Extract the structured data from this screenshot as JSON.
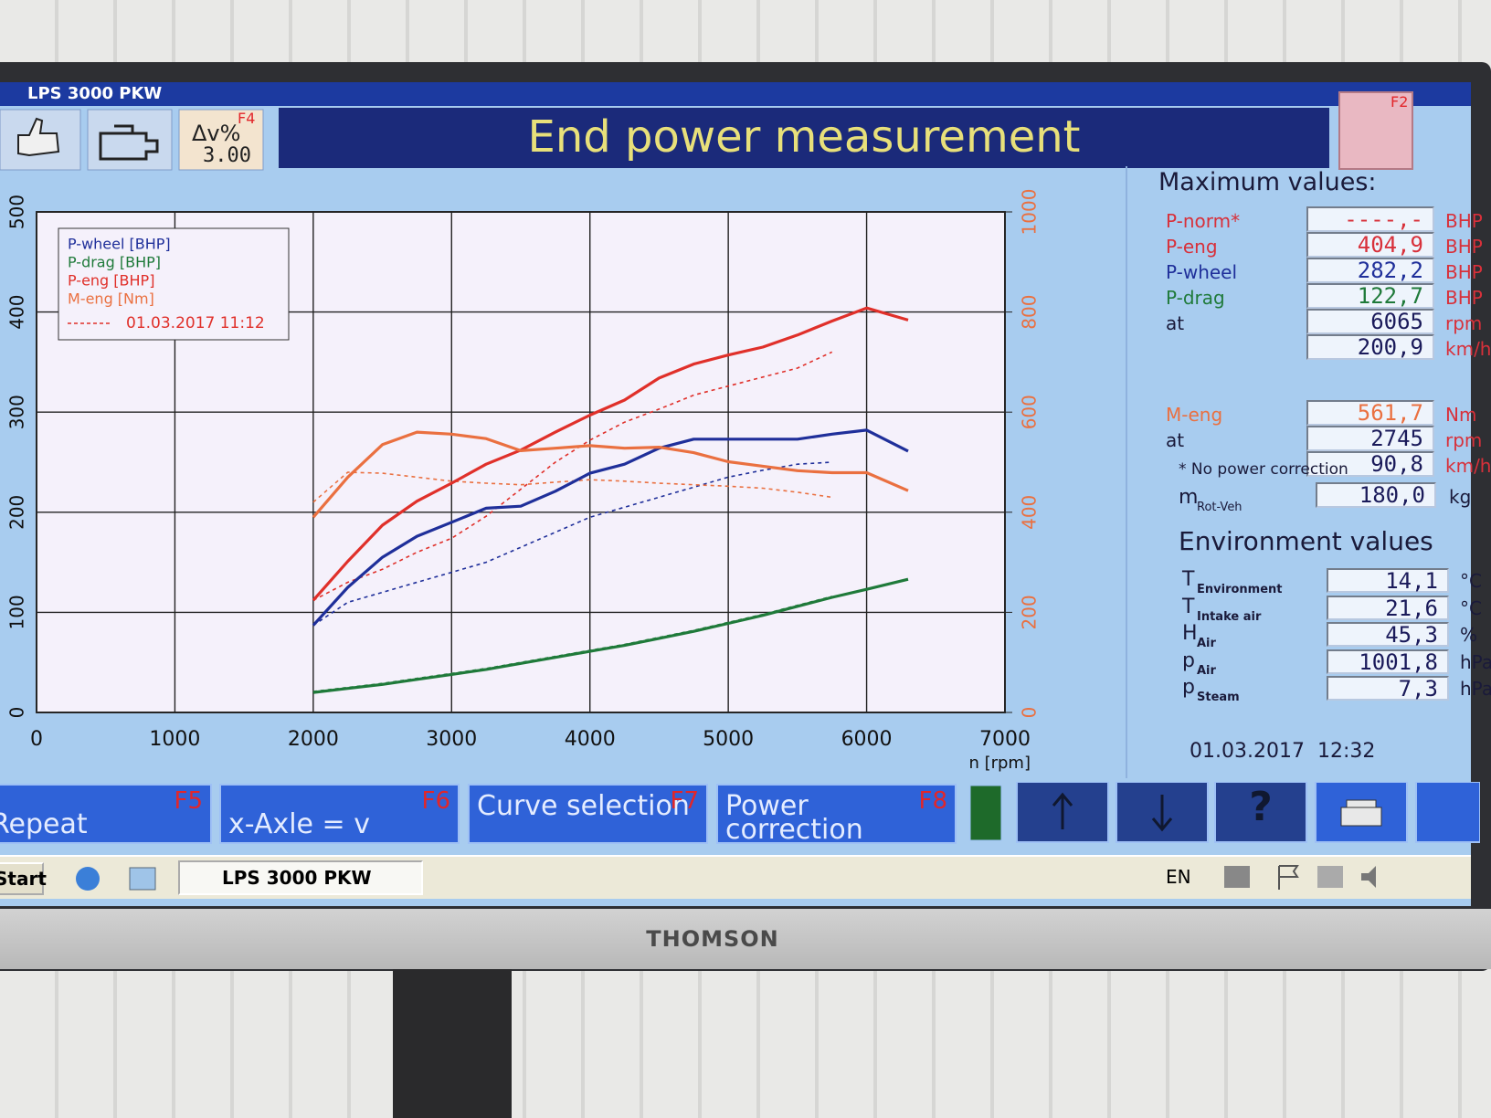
{
  "window": {
    "title": "LPS 3000 PKW"
  },
  "toolbar": {
    "delta_label": "Δv%",
    "delta_value": "3.00",
    "delta_key": "F4",
    "title": "End power measurement",
    "right_key": "F2"
  },
  "chart_data": {
    "type": "line",
    "xlabel": "n [rpm]",
    "x": [
      2000,
      2250,
      2500,
      2750,
      3000,
      3250,
      3500,
      3750,
      4000,
      4250,
      4500,
      4750,
      5000,
      5250,
      5500,
      5750,
      6000,
      6300
    ],
    "series": [
      {
        "name": "P-wheel [BHP]",
        "color": "#1f2f9a",
        "values": [
          87,
          125,
          155,
          176,
          190,
          204,
          206,
          221,
          239,
          248,
          264,
          273,
          273,
          273,
          273,
          278,
          282,
          261
        ]
      },
      {
        "name": "P-drag [BHP]",
        "color": "#1f7a3a",
        "values": [
          20,
          24,
          28,
          33,
          38,
          43,
          49,
          55,
          61,
          67,
          74,
          81,
          89,
          97,
          106,
          115,
          123,
          133
        ]
      },
      {
        "name": "P-eng [BHP]",
        "color": "#e0302a",
        "values": [
          112,
          151,
          187,
          211,
          229,
          248,
          262,
          280,
          297,
          312,
          334,
          348,
          357,
          365,
          377,
          391,
          404,
          392
        ]
      },
      {
        "name": "M-eng [Nm]",
        "color": "#ea7040",
        "axis": "y2",
        "values": [
          390,
          470,
          535,
          560,
          556,
          547,
          523,
          528,
          533,
          528,
          530,
          519,
          501,
          492,
          483,
          479,
          479,
          443
        ]
      }
    ],
    "comparison": {
      "label": "01.03.2017 11:12",
      "series": [
        {
          "color": "#1f2f9a",
          "values": [
            87,
            110,
            120,
            130,
            140,
            150,
            165,
            180,
            195,
            205,
            215,
            225,
            235,
            242,
            248,
            250,
            null,
            null
          ]
        },
        {
          "color": "#1f7a3a",
          "values": [
            21,
            25,
            29,
            34,
            39,
            44,
            50,
            56,
            62,
            68,
            75,
            82,
            90,
            98,
            107,
            116,
            null,
            null
          ]
        },
        {
          "color": "#e0302a",
          "values": [
            112,
            130,
            143,
            160,
            174,
            196,
            223,
            250,
            272,
            290,
            303,
            317,
            326,
            335,
            344,
            360,
            null,
            null
          ]
        },
        {
          "color": "#ea7040",
          "axis": "y2",
          "values": [
            420,
            480,
            478,
            470,
            462,
            458,
            455,
            460,
            465,
            462,
            458,
            455,
            452,
            448,
            440,
            430,
            null,
            null
          ]
        }
      ]
    },
    "xlim": [
      0,
      7000
    ],
    "xticks": [
      0,
      1000,
      2000,
      3000,
      4000,
      5000,
      6000,
      7000
    ],
    "ylim": [
      0,
      500
    ],
    "yticks": [
      0,
      100,
      200,
      300,
      400,
      500
    ],
    "y2lim": [
      0,
      1000
    ],
    "y2ticks": [
      0,
      200,
      400,
      600,
      800,
      1000
    ],
    "y2color": "#ea7040",
    "grid": true,
    "legend": "upper left"
  },
  "max_values": {
    "title": "Maximum values:",
    "rows": [
      {
        "label": "P-norm*",
        "value": "----,-",
        "unit": "BHP",
        "color": "#d8303a"
      },
      {
        "label": "P-eng",
        "value": "404,9",
        "unit": "BHP",
        "color": "#d8303a"
      },
      {
        "label": "P-wheel",
        "value": "282,2",
        "unit": "BHP",
        "color": "#1f2f9a"
      },
      {
        "label": "P-drag",
        "value": "122,7",
        "unit": "BHP",
        "color": "#1f7a3a"
      },
      {
        "label": "at",
        "value": "6065",
        "unit": "rpm",
        "color": "#1a1a3a"
      },
      {
        "label": null,
        "value": "200,9",
        "unit": "km/h",
        "color": "#1a1a3a"
      },
      {
        "label": "M-eng",
        "value": "561,7",
        "unit": "Nm",
        "color": "#ea7040"
      },
      {
        "label": "at",
        "value": "2745",
        "unit": "rpm",
        "color": "#1a1a3a"
      },
      {
        "label": null,
        "value": "90,8",
        "unit": "km/h",
        "color": "#1a1a3a"
      }
    ],
    "note": "* No power correction",
    "mass": {
      "label": "m",
      "sub": "Rot-Veh",
      "value": "180,0",
      "unit": "kg"
    }
  },
  "environment": {
    "title": "Environment values",
    "rows": [
      {
        "label": "T",
        "sub": "Environment",
        "value": "14,1",
        "unit": "°C"
      },
      {
        "label": "T",
        "sub": "Intake air",
        "value": "21,6",
        "unit": "°C"
      },
      {
        "label": "H",
        "sub": "Air",
        "value": "45,3",
        "unit": "%"
      },
      {
        "label": "p",
        "sub": "Air",
        "value": "1001,8",
        "unit": "hPa"
      },
      {
        "label": "p",
        "sub": "Steam",
        "value": "7,3",
        "unit": "hPa"
      }
    ]
  },
  "datetime": "01.03.2017  12:32",
  "buttons": [
    {
      "label": "Repeat",
      "key": "F5"
    },
    {
      "label": "x-Axle = v",
      "key": "F6"
    },
    {
      "label": "Curve selection",
      "key": "F7"
    },
    {
      "label": "Power correction",
      "key": "F8"
    }
  ],
  "help": "?",
  "taskbar": {
    "start": "Start",
    "task": "LPS 3000 PKW",
    "lang": "EN"
  },
  "monitor": {
    "brand": "THOMSON"
  }
}
